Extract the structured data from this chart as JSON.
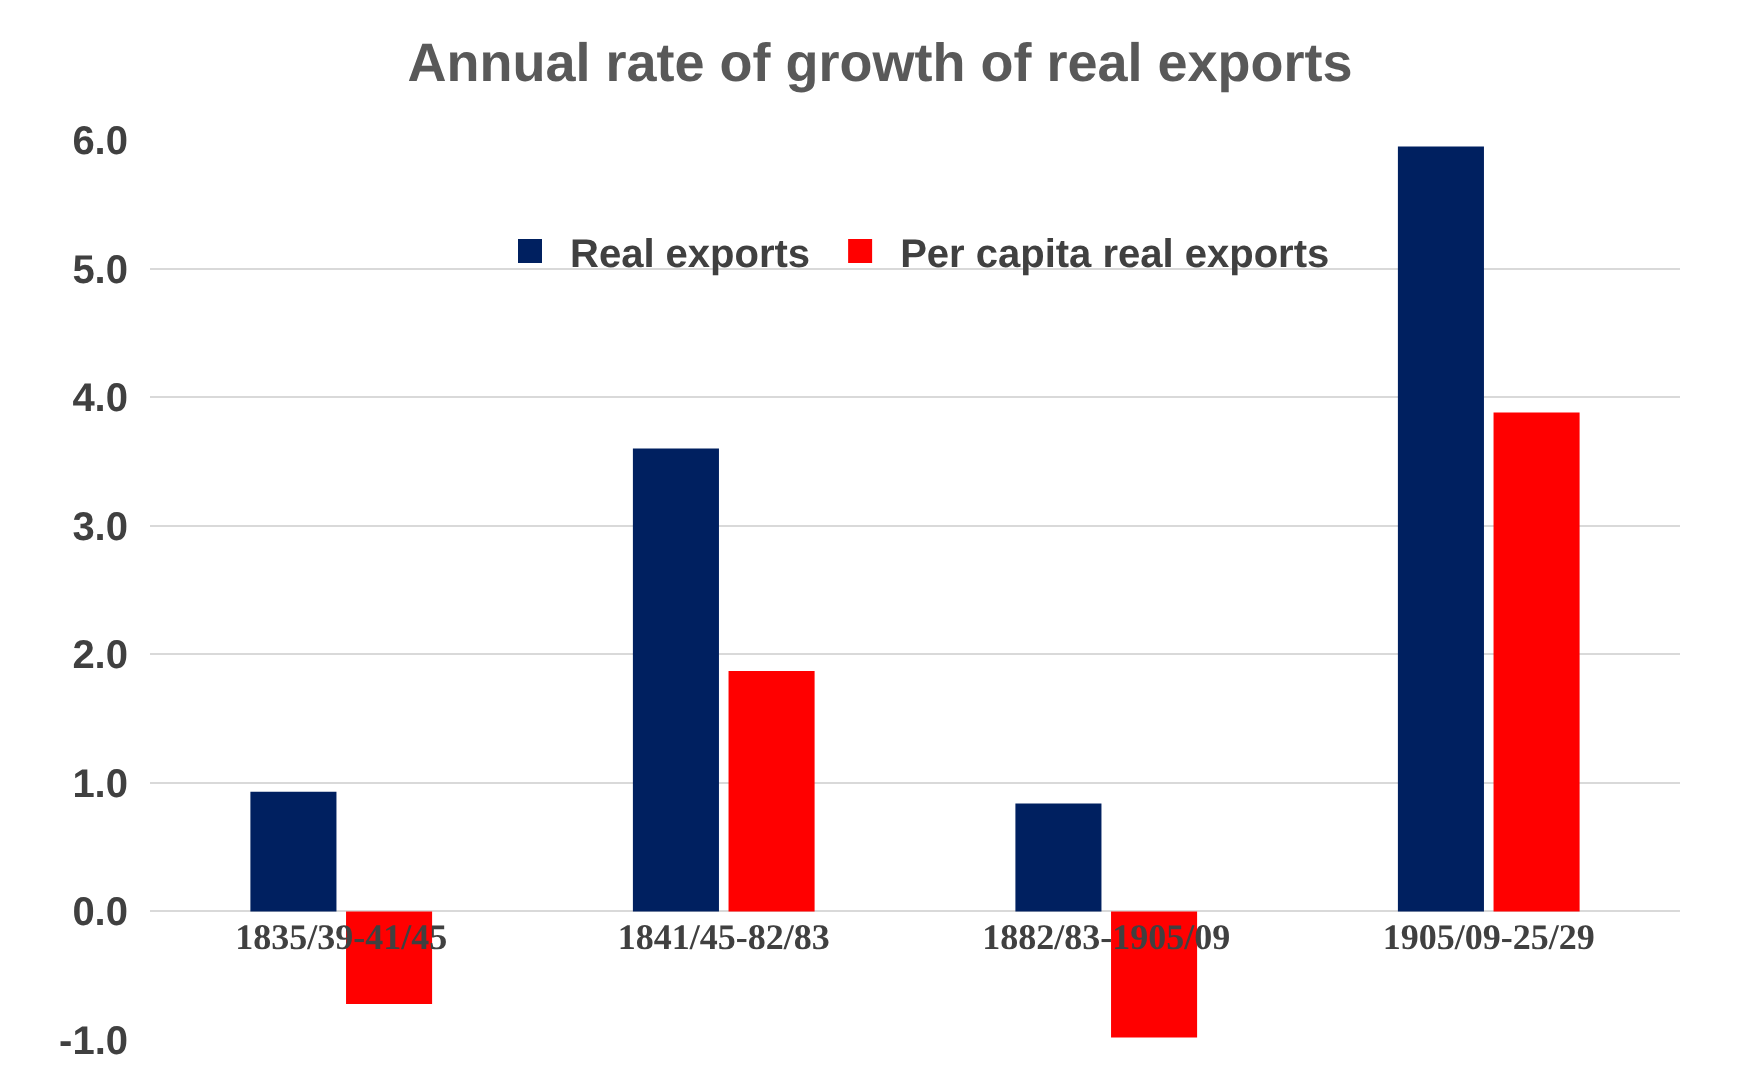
{
  "chart_data": {
    "type": "bar",
    "title": "Annual rate of growth of real exports",
    "categories": [
      "1835/39-41/45",
      "1841/45-82/83",
      "1882/83-1905/09",
      "1905/09-25/29"
    ],
    "series": [
      {
        "name": "Real exports",
        "color": "#002060",
        "values": [
          0.93,
          3.6,
          0.84,
          5.95
        ]
      },
      {
        "name": "Per capita real exports",
        "color": "#ff0000",
        "values": [
          -0.72,
          1.87,
          -0.98,
          3.88
        ]
      }
    ],
    "ylim": [
      -1.0,
      6.0
    ],
    "yticks": [
      {
        "value": -1,
        "label": "-1.0"
      },
      {
        "value": 0,
        "label": "0.0"
      },
      {
        "value": 1,
        "label": "1.0"
      },
      {
        "value": 2,
        "label": "2.0"
      },
      {
        "value": 3,
        "label": "3.0"
      },
      {
        "value": 4,
        "label": "4.0"
      },
      {
        "value": 5,
        "label": "5.0"
      },
      {
        "value": 6,
        "label": "6.0"
      }
    ],
    "grid": "y",
    "legend": "top"
  }
}
